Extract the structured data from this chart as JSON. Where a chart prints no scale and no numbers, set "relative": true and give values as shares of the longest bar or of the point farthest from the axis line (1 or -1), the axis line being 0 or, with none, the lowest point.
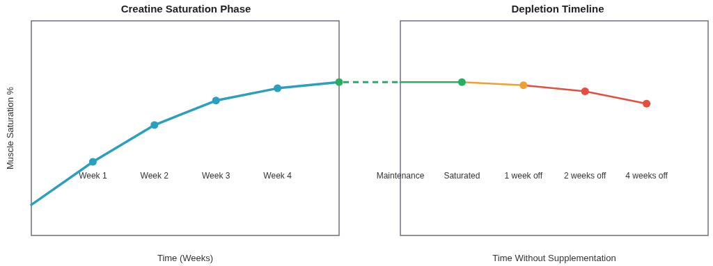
{
  "chart_data": [
    {
      "type": "line",
      "title": "Creatine Saturation Phase",
      "xlabel": "Time (Weeks)",
      "ylabel": "Muscle Saturation %",
      "relative": true,
      "categories": [
        null,
        "Week 1",
        "Week 2",
        "Week 3",
        "Week 4",
        null
      ],
      "marker": "circle",
      "grid": false,
      "series": [
        {
          "color": "#2a9fc0",
          "colors": [
            "#2a9fc0",
            "#2a9fc0",
            "#2a9fc0",
            "#2a9fc0",
            "#2a9fc0",
            "#27ae60"
          ],
          "values": [
            0.2,
            0.48,
            0.72,
            0.88,
            0.96,
            1
          ]
        }
      ]
    },
    {
      "type": "line",
      "title": "Depletion Timeline",
      "xlabel": "Time Without Supplementation",
      "relative": true,
      "categories": [
        "Maintenance",
        "Saturated",
        "1 week off",
        "2 weeks off",
        "4 weeks off",
        null
      ],
      "marker": "circle",
      "grid": false,
      "series": [
        {
          "color": "#27ae60",
          "values": [
            1,
            1,
            null,
            null,
            null,
            null
          ]
        },
        {
          "color": "#f0a030",
          "values": [
            null,
            1,
            0.98,
            null,
            null,
            null
          ]
        },
        {
          "color": "#e74c3c",
          "values": [
            null,
            null,
            0.98,
            0.94,
            0.86,
            null
          ]
        }
      ]
    }
  ]
}
